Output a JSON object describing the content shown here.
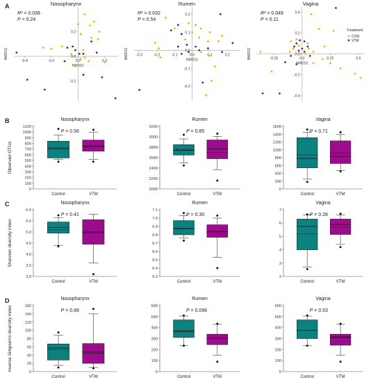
{
  "chart_data": [
    {
      "type": "scatter",
      "panel": "A",
      "title": "Nasopharynx",
      "xlabel": "NMDS1",
      "ylabel": "NMDS2",
      "xlim": [
        -0.48,
        0.3
      ],
      "ylim": [
        -0.36,
        0.4
      ],
      "xticks": [
        -0.4,
        -0.2,
        0.0,
        0.2
      ],
      "yticks": [
        -0.2,
        0.0,
        0.2
      ],
      "stats": [
        "R² = 0.038",
        "P = 0.24"
      ],
      "series": [
        {
          "name": "CON",
          "color": "#f5b301",
          "points": [
            [
              0.05,
              0.34
            ],
            [
              0.12,
              0.28
            ],
            [
              0.0,
              0.26
            ],
            [
              0.09,
              0.25
            ],
            [
              0.16,
              0.2
            ],
            [
              0.02,
              0.18
            ],
            [
              0.15,
              0.14
            ],
            [
              -0.2,
              0.06
            ],
            [
              -0.12,
              0.08
            ],
            [
              0.04,
              0.05
            ],
            [
              -0.05,
              0.02
            ],
            [
              0.02,
              -0.02
            ],
            [
              0.05,
              -0.01
            ],
            [
              0.08,
              -0.04
            ],
            [
              -0.02,
              -0.08
            ],
            [
              -0.26,
              0.07
            ],
            [
              0.2,
              -0.05
            ],
            [
              0.1,
              0.15
            ]
          ]
        },
        {
          "name": "VTM",
          "color": "#3f2c73",
          "points": [
            [
              -0.46,
              0.03
            ],
            [
              -0.38,
              -0.19
            ],
            [
              -0.04,
              0.08
            ],
            [
              -0.08,
              0.07
            ],
            [
              -0.02,
              0.05
            ],
            [
              0.01,
              0.02
            ],
            [
              0.04,
              0.02
            ],
            [
              0.1,
              0.12
            ],
            [
              0.14,
              0.03
            ],
            [
              -0.1,
              -0.04
            ],
            [
              0.18,
              -0.17
            ],
            [
              -0.25,
              -0.27
            ],
            [
              0.04,
              -0.15
            ],
            [
              0.28,
              -0.34
            ]
          ]
        }
      ]
    },
    {
      "type": "scatter",
      "panel": "A",
      "title": "Rumen",
      "xlabel": "NMDS1",
      "ylabel": "NMDS2",
      "xlim": [
        -0.33,
        0.27
      ],
      "ylim": [
        -0.28,
        0.24
      ],
      "xticks": [
        -0.3,
        -0.2,
        -0.1,
        0.0,
        0.1,
        0.2
      ],
      "yticks": [
        -0.2,
        -0.1,
        0.0,
        0.1,
        0.2
      ],
      "stats": [
        "R² = 0.032",
        "P = 0.54"
      ],
      "series": [
        {
          "name": "CON",
          "color": "#f5b301",
          "points": [
            [
              -0.15,
              0.18
            ],
            [
              -0.02,
              0.15
            ],
            [
              0.02,
              0.14
            ],
            [
              0.05,
              0.12
            ],
            [
              -0.1,
              0.12
            ],
            [
              0.1,
              0.1
            ],
            [
              0.0,
              0.1
            ],
            [
              0.04,
              0.07
            ],
            [
              -0.04,
              0.06
            ],
            [
              0.09,
              0.05
            ],
            [
              0.15,
              0.05
            ],
            [
              0.17,
              0.08
            ],
            [
              -0.21,
              0.04
            ],
            [
              -0.18,
              -0.04
            ],
            [
              0.05,
              -0.01
            ],
            [
              0.1,
              -0.03
            ],
            [
              0.13,
              -0.09
            ],
            [
              0.11,
              -0.17
            ],
            [
              0.08,
              -0.25
            ],
            [
              -0.19,
              0.01
            ]
          ]
        },
        {
          "name": "VTM",
          "color": "#3f2c73",
          "points": [
            [
              -0.08,
              0.14
            ],
            [
              -0.12,
              0.11
            ],
            [
              -0.06,
              0.09
            ],
            [
              -0.03,
              0.03
            ],
            [
              -0.08,
              0.02
            ],
            [
              -0.02,
              -0.01
            ],
            [
              0.02,
              0.02
            ],
            [
              0.04,
              0.0
            ],
            [
              0.09,
              0.01
            ],
            [
              -0.06,
              -0.02
            ],
            [
              0.16,
              0.2
            ],
            [
              0.23,
              0.04
            ],
            [
              0.17,
              -0.01
            ],
            [
              -0.3,
              -0.22
            ],
            [
              0.06,
              -0.18
            ]
          ]
        }
      ]
    },
    {
      "type": "scatter",
      "panel": "A",
      "title": "Vagina",
      "xlabel": "NMDS1",
      "ylabel": "NMDS2",
      "xlim": [
        -0.4,
        0.55
      ],
      "ylim": [
        -0.45,
        0.45
      ],
      "xticks": [
        -0.25,
        0.0,
        0.25,
        0.5
      ],
      "yticks": [
        -0.4,
        -0.2,
        0.0,
        0.2,
        0.4
      ],
      "stats": [
        "R² = 0.049",
        "P = 0.11"
      ],
      "legend": {
        "title": "Treatment",
        "entries": [
          "CON",
          "VTM"
        ],
        "placement": "right"
      },
      "series": [
        {
          "name": "CON",
          "color": "#f5b301",
          "points": [
            [
              -0.37,
              0.02
            ],
            [
              -0.1,
              0.12
            ],
            [
              -0.05,
              0.14
            ],
            [
              0.05,
              0.1
            ],
            [
              -0.03,
              0.08
            ],
            [
              0.06,
              0.05
            ],
            [
              0.03,
              0.0
            ],
            [
              -0.08,
              0.05
            ],
            [
              -0.11,
              0.02
            ],
            [
              -0.02,
              0.0
            ],
            [
              0.1,
              0.02
            ],
            [
              0.2,
              0.07
            ],
            [
              0.18,
              -0.05
            ],
            [
              -0.27,
              -0.17
            ],
            [
              0.1,
              -0.09
            ],
            [
              0.34,
              -0.14
            ],
            [
              0.47,
              -0.19
            ],
            [
              0.52,
              -0.23
            ],
            [
              0.25,
              -0.09
            ],
            [
              0.15,
              0.24
            ],
            [
              0.28,
              0.22
            ],
            [
              0.08,
              0.38
            ]
          ]
        },
        {
          "name": "VTM",
          "color": "#3f2c73",
          "points": [
            [
              -0.02,
              0.13
            ],
            [
              0.02,
              0.12
            ],
            [
              -0.05,
              0.1
            ],
            [
              0.05,
              0.07
            ],
            [
              -0.07,
              0.07
            ],
            [
              0.0,
              0.05
            ],
            [
              -0.03,
              0.03
            ],
            [
              0.07,
              -0.02
            ],
            [
              -0.1,
              -0.02
            ],
            [
              -0.15,
              -0.08
            ],
            [
              -0.05,
              -0.1
            ],
            [
              0.02,
              0.02
            ],
            [
              0.3,
              0.44
            ],
            [
              -0.35,
              -0.38
            ],
            [
              -0.2,
              -0.38
            ]
          ]
        }
      ]
    },
    {
      "type": "box",
      "panel": "B",
      "title": "Nasopharynx",
      "ylabel": "Observed OTUs",
      "categories": [
        "Control",
        "VTM"
      ],
      "ylim": [
        0,
        1100
      ],
      "yticks": [
        0,
        100,
        200,
        300,
        400,
        500,
        600,
        700,
        800,
        900,
        1000,
        1100
      ],
      "stat": "P = 0.56",
      "boxes": [
        {
          "name": "Control",
          "color": "#0d8080",
          "whisker_low": 520,
          "q1": 545,
          "median": 720,
          "mean": 700,
          "q3": 840,
          "whisker_high": 950,
          "outliers": [
            480,
            1055
          ]
        },
        {
          "name": "VTM",
          "color": "#9d0c8d",
          "whisker_low": 520,
          "q1": 665,
          "median": 745,
          "mean": 760,
          "q3": 860,
          "whisker_high": 1000,
          "outliers": [
            480,
            1040
          ]
        }
      ]
    },
    {
      "type": "box",
      "panel": "B",
      "title": "Rumen",
      "categories": [
        "Control",
        "VTM"
      ],
      "ylim": [
        2000,
        3200
      ],
      "yticks": [
        2000,
        2200,
        2400,
        2600,
        2800,
        3000,
        3200
      ],
      "stat": "P = 0.85",
      "boxes": [
        {
          "name": "Control",
          "color": "#0d8080",
          "whisker_low": 2500,
          "q1": 2650,
          "median": 2740,
          "mean": 2760,
          "q3": 2850,
          "whisker_high": 2960,
          "outliers": [
            2450,
            3040
          ]
        },
        {
          "name": "VTM",
          "color": "#9d0c8d",
          "whisker_low": 2370,
          "q1": 2580,
          "median": 2770,
          "mean": 2700,
          "q3": 2940,
          "whisker_high": 3010,
          "outliers": [
            2160,
            3060
          ]
        }
      ]
    },
    {
      "type": "box",
      "panel": "B",
      "title": "Vagina",
      "categories": [
        "Control",
        "VTM"
      ],
      "ylim": [
        0,
        1600
      ],
      "yticks": [
        0,
        200,
        400,
        600,
        800,
        1000,
        1200,
        1400,
        1600
      ],
      "stat": "P = 0.71",
      "boxes": [
        {
          "name": "Control",
          "color": "#0d8080",
          "whisker_low": 250,
          "q1": 540,
          "median": 780,
          "mean": 870,
          "q3": 1310,
          "whisker_high": 1450,
          "outliers": [
            180,
            1520
          ]
        },
        {
          "name": "VTM",
          "color": "#9d0c8d",
          "whisker_low": 470,
          "q1": 650,
          "median": 830,
          "mean": 920,
          "q3": 1230,
          "whisker_high": 1390,
          "outliers": [
            450,
            1450
          ]
        }
      ]
    },
    {
      "type": "box",
      "panel": "C",
      "title": "Nasopharynx",
      "ylabel": "Shannon diversity index",
      "categories": [
        "Control",
        "VTM"
      ],
      "ylim": [
        3.0,
        6.0
      ],
      "yticks": [
        3.0,
        3.5,
        4.0,
        4.5,
        5.0,
        5.5,
        6.0
      ],
      "stat": "P = 0.41",
      "boxes": [
        {
          "name": "Control",
          "color": "#0d8080",
          "whisker_low": 4.4,
          "q1": 4.95,
          "median": 5.2,
          "mean": 5.1,
          "q3": 5.45,
          "whisker_high": 5.65,
          "outliers": [
            4.35,
            5.75
          ]
        },
        {
          "name": "VTM",
          "color": "#9d0c8d",
          "whisker_low": 3.6,
          "q1": 4.45,
          "median": 5.0,
          "mean": 4.95,
          "q3": 5.55,
          "whisker_high": 5.8,
          "outliers": [
            3.1
          ]
        }
      ]
    },
    {
      "type": "box",
      "panel": "C",
      "title": "Rumen",
      "categories": [
        "Control",
        "VTM"
      ],
      "ylim": [
        6.3,
        7.1
      ],
      "yticks": [
        6.3,
        6.4,
        6.5,
        6.6,
        6.7,
        6.8,
        6.9,
        7.0,
        7.1
      ],
      "stat": "P = 0.30",
      "boxes": [
        {
          "name": "Control",
          "color": "#0d8080",
          "whisker_low": 6.76,
          "q1": 6.8,
          "median": 6.87,
          "mean": 6.88,
          "q3": 6.97,
          "whisker_high": 7.03,
          "outliers": [
            6.73,
            7.06
          ]
        },
        {
          "name": "VTM",
          "color": "#9d0c8d",
          "whisker_low": 6.53,
          "q1": 6.77,
          "median": 6.84,
          "mean": 6.82,
          "q3": 6.92,
          "whisker_high": 7.0,
          "outliers": [
            6.4,
            7.03
          ]
        }
      ]
    },
    {
      "type": "box",
      "panel": "C",
      "title": "Vagina",
      "categories": [
        "Control",
        "VTM"
      ],
      "ylim": [
        2,
        7
      ],
      "yticks": [
        2,
        3,
        4,
        5,
        6,
        7
      ],
      "stat": "P = 0.28",
      "boxes": [
        {
          "name": "Control",
          "color": "#0d8080",
          "whisker_low": 2.7,
          "q1": 4.0,
          "median": 5.75,
          "mean": 5.2,
          "q3": 6.3,
          "whisker_high": 6.6,
          "outliers": [
            2.55,
            6.65
          ]
        },
        {
          "name": "VTM",
          "color": "#9d0c8d",
          "whisker_low": 4.4,
          "q1": 5.15,
          "median": 5.9,
          "mean": 5.7,
          "q3": 6.3,
          "whisker_high": 6.6,
          "outliers": [
            4.2,
            6.7
          ]
        }
      ]
    },
    {
      "type": "box",
      "panel": "D",
      "title": "Nasopharynx",
      "ylabel": "Inverse Simpson's diversity index",
      "categories": [
        "Control",
        "VTM"
      ],
      "ylim": [
        0,
        160
      ],
      "yticks": [
        0,
        20,
        40,
        60,
        80,
        100,
        120,
        140,
        160
      ],
      "stat": "P = 0.89",
      "boxes": [
        {
          "name": "Control",
          "color": "#0d8080",
          "whisker_low": 15,
          "q1": 28,
          "median": 57,
          "mean": 53,
          "q3": 67,
          "whisker_high": 88,
          "outliers": [
            10,
            95
          ]
        },
        {
          "name": "VTM",
          "color": "#9d0c8d",
          "whisker_low": 10,
          "q1": 20,
          "median": 45,
          "mean": 48,
          "q3": 68,
          "whisker_high": 140,
          "outliers": [
            8,
            152
          ]
        }
      ]
    },
    {
      "type": "box",
      "panel": "D",
      "title": "Rumen",
      "categories": [
        "Control",
        "VTM"
      ],
      "ylim": [
        0,
        600
      ],
      "yticks": [
        0,
        100,
        200,
        300,
        400,
        500,
        600
      ],
      "stat": "P = 0.096",
      "boxes": [
        {
          "name": "Control",
          "color": "#0d8080",
          "whisker_low": 235,
          "q1": 310,
          "median": 370,
          "mean": 360,
          "q3": 470,
          "whisker_high": 505,
          "outliers": [
            235,
            510
          ]
        },
        {
          "name": "VTM",
          "color": "#9d0c8d",
          "whisker_low": 150,
          "q1": 245,
          "median": 300,
          "mean": 310,
          "q3": 340,
          "whisker_high": 430,
          "outliers": [
            90,
            435
          ]
        }
      ]
    },
    {
      "type": "box",
      "panel": "D",
      "title": "Vagina",
      "categories": [
        "Control",
        "VTM"
      ],
      "ylim": [
        0,
        600
      ],
      "yticks": [
        0,
        100,
        200,
        300,
        400,
        500,
        600
      ],
      "stat": "P = 0.53",
      "boxes": [
        {
          "name": "Control",
          "color": "#0d8080",
          "whisker_low": 235,
          "q1": 300,
          "median": 375,
          "mean": 375,
          "q3": 470,
          "whisker_high": 505,
          "outliers": [
            235,
            510
          ]
        },
        {
          "name": "VTM",
          "color": "#9d0c8d",
          "whisker_low": 150,
          "q1": 240,
          "median": 310,
          "mean": 320,
          "q3": 340,
          "whisker_high": 430,
          "outliers": [
            90,
            435
          ]
        }
      ]
    }
  ],
  "panel_letters": [
    "A",
    "B",
    "C",
    "D"
  ]
}
